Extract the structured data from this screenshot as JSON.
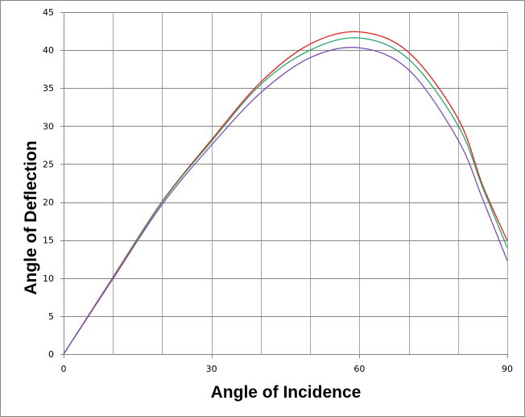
{
  "chart_data": {
    "type": "line",
    "title": "",
    "xlabel": "Angle of Incidence",
    "ylabel": "Angle of Deflection",
    "xlim": [
      0,
      90
    ],
    "ylim": [
      0,
      45
    ],
    "x_ticks": [
      0,
      30,
      60,
      90
    ],
    "y_ticks": [
      0,
      5,
      10,
      15,
      20,
      25,
      30,
      35,
      40,
      45
    ],
    "grid": true,
    "x_gridlines_every": 10,
    "legend": null,
    "x": [
      0,
      10,
      20,
      30,
      40,
      50,
      60,
      70,
      80,
      85,
      90
    ],
    "series": [
      {
        "name": "red",
        "color": "#e0201b",
        "values": [
          0,
          10.1,
          20.1,
          28.2,
          35.8,
          40.8,
          42.4,
          39.7,
          31.0,
          22.2,
          14.9
        ]
      },
      {
        "name": "green",
        "color": "#2ca66b",
        "values": [
          0,
          10.0,
          20.0,
          28.0,
          35.5,
          40.0,
          41.6,
          38.8,
          30.1,
          21.9,
          14.0
        ]
      },
      {
        "name": "purple",
        "color": "#7a4fb5",
        "values": [
          0,
          9.9,
          19.7,
          27.5,
          34.4,
          39.0,
          40.3,
          37.4,
          28.2,
          20.4,
          12.3
        ]
      }
    ]
  }
}
